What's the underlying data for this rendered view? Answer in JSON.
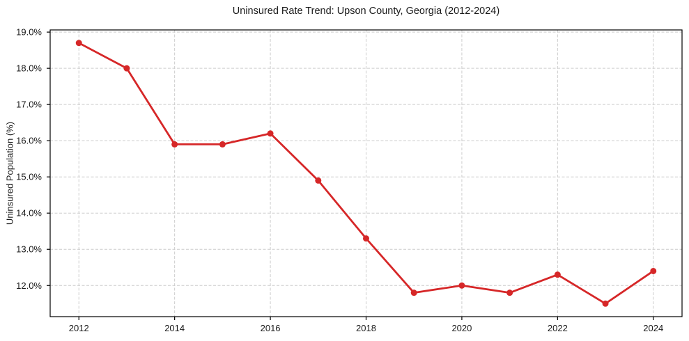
{
  "chart_data": {
    "type": "line",
    "title": "Uninsured Rate Trend: Upson County, Georgia (2012-2024)",
    "xlabel": "",
    "ylabel": "Uninsured Population (%)",
    "x": [
      2012,
      2013,
      2014,
      2015,
      2016,
      2017,
      2018,
      2019,
      2020,
      2021,
      2022,
      2023,
      2024
    ],
    "values": [
      18.7,
      18.0,
      15.9,
      15.9,
      16.2,
      14.9,
      13.3,
      11.8,
      12.0,
      11.8,
      12.3,
      11.5,
      12.4
    ],
    "x_tick_values": [
      2012,
      2014,
      2016,
      2018,
      2020,
      2022,
      2024
    ],
    "x_tick_labels": [
      "2012",
      "2014",
      "2016",
      "2018",
      "2020",
      "2022",
      "2024"
    ],
    "y_tick_values": [
      12.0,
      13.0,
      14.0,
      15.0,
      16.0,
      17.0,
      18.0,
      19.0
    ],
    "y_tick_labels": [
      "12.0%",
      "13.0%",
      "14.0%",
      "15.0%",
      "16.0%",
      "17.0%",
      "18.0%",
      "19.0%"
    ],
    "xlim": [
      2011.4,
      2024.6
    ],
    "ylim": [
      11.14,
      19.06
    ],
    "grid": true,
    "legend": "none",
    "line_color": "#d62728",
    "marker": "circle",
    "marker_color": "#d62728",
    "grid_color": "#cccccc",
    "spine_color": "#000000",
    "text_color": "#1a1a1a",
    "background_color": "#ffffff"
  }
}
